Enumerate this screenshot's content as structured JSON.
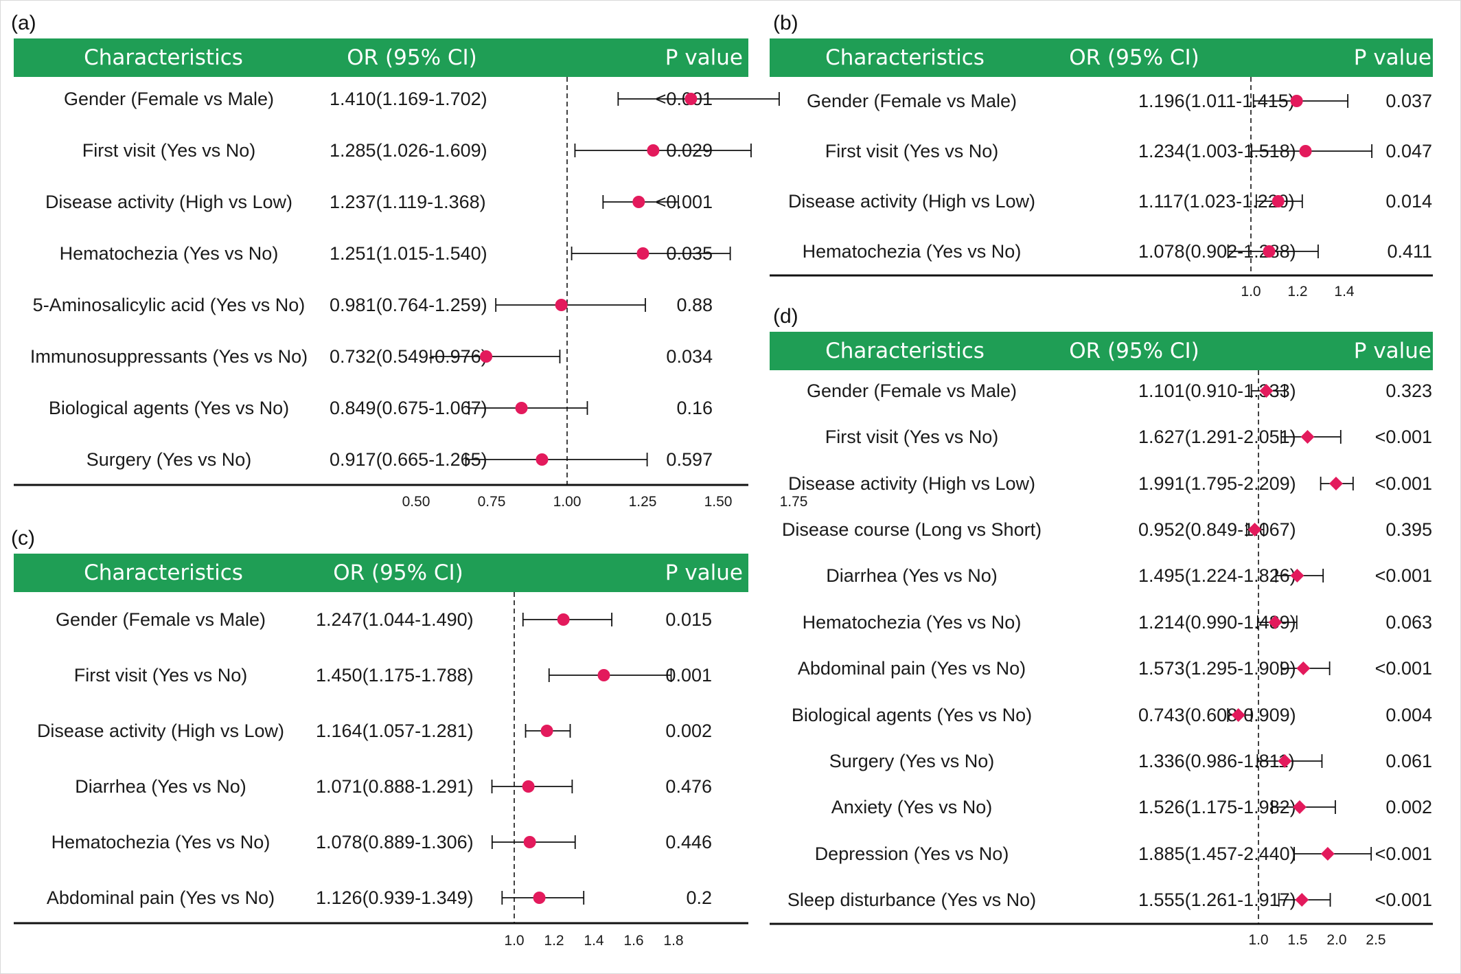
{
  "colors": {
    "header_bg": "#1f9e55",
    "marker": "#e31a5c",
    "line": "#111111"
  },
  "chart_data": [
    {
      "panel": "(a)",
      "type": "forest",
      "marker": "circle",
      "columns": [
        "Characteristics",
        "OR (95% CI)",
        "P value"
      ],
      "ref_line": 1.0,
      "xlim": [
        0.5,
        1.75
      ],
      "ticks": [
        "0.50",
        "0.75",
        "1.00",
        "1.25",
        "1.50",
        "1.75"
      ],
      "rows": [
        {
          "label": "Gender (Female vs Male)",
          "or": 1.41,
          "lo": 1.169,
          "hi": 1.702,
          "ci_text": "1.410(1.169-1.702)",
          "p": "<0.001"
        },
        {
          "label": "First visit (Yes vs No)",
          "or": 1.285,
          "lo": 1.026,
          "hi": 1.609,
          "ci_text": "1.285(1.026-1.609)",
          "p": "0.029"
        },
        {
          "label": "Disease activity (High vs Low)",
          "or": 1.237,
          "lo": 1.119,
          "hi": 1.368,
          "ci_text": "1.237(1.119-1.368)",
          "p": "<0.001"
        },
        {
          "label": "Hematochezia (Yes vs No)",
          "or": 1.251,
          "lo": 1.015,
          "hi": 1.54,
          "ci_text": "1.251(1.015-1.540)",
          "p": "0.035"
        },
        {
          "label": "5-Aminosalicylic acid (Yes vs No)",
          "or": 0.981,
          "lo": 0.764,
          "hi": 1.259,
          "ci_text": "0.981(0.764-1.259)",
          "p": "0.88"
        },
        {
          "label": "Immunosuppressants (Yes vs No)",
          "or": 0.732,
          "lo": 0.549,
          "hi": 0.976,
          "ci_text": "0.732(0.549-0.976)",
          "p": "0.034"
        },
        {
          "label": "Biological agents (Yes vs No)",
          "or": 0.849,
          "lo": 0.675,
          "hi": 1.067,
          "ci_text": "0.849(0.675-1.067)",
          "p": "0.16"
        },
        {
          "label": "Surgery (Yes vs No)",
          "or": 0.917,
          "lo": 0.665,
          "hi": 1.265,
          "ci_text": "0.917(0.665-1.265)",
          "p": "0.597"
        }
      ]
    },
    {
      "panel": "(b)",
      "type": "forest",
      "marker": "circle",
      "columns": [
        "Characteristics",
        "OR (95% CI)",
        "P value"
      ],
      "ref_line": 1.0,
      "xlim": [
        0.9,
        1.5
      ],
      "ticks": [
        "1.0",
        "1.2",
        "1.4"
      ],
      "rows": [
        {
          "label": "Gender (Female vs Male)",
          "or": 1.196,
          "lo": 1.011,
          "hi": 1.415,
          "ci_text": "1.196(1.011-1.415)",
          "p": "0.037"
        },
        {
          "label": "First visit (Yes vs No)",
          "or": 1.234,
          "lo": 1.003,
          "hi": 1.518,
          "ci_text": "1.234(1.003-1.518)",
          "p": "0.047"
        },
        {
          "label": "Disease activity (High vs Low)",
          "or": 1.117,
          "lo": 1.023,
          "hi": 1.22,
          "ci_text": "1.117(1.023-1.220)",
          "p": "0.014"
        },
        {
          "label": "Hematochezia (Yes vs No)",
          "or": 1.078,
          "lo": 0.902,
          "hi": 1.288,
          "ci_text": "1.078(0.902-1.288)",
          "p": "0.411"
        }
      ]
    },
    {
      "panel": "(c)",
      "type": "forest",
      "marker": "circle",
      "columns": [
        "Characteristics",
        "OR (95% CI)",
        "P value"
      ],
      "ref_line": 1.0,
      "xlim": [
        0.85,
        1.85
      ],
      "ticks": [
        "1.0",
        "1.2",
        "1.4",
        "1.6",
        "1.8"
      ],
      "rows": [
        {
          "label": "Gender (Female vs Male)",
          "or": 1.247,
          "lo": 1.044,
          "hi": 1.49,
          "ci_text": "1.247(1.044-1.490)",
          "p": "0.015"
        },
        {
          "label": "First visit (Yes vs No)",
          "or": 1.45,
          "lo": 1.175,
          "hi": 1.788,
          "ci_text": "1.450(1.175-1.788)",
          "p": "0.001"
        },
        {
          "label": "Disease activity (High vs Low)",
          "or": 1.164,
          "lo": 1.057,
          "hi": 1.281,
          "ci_text": "1.164(1.057-1.281)",
          "p": "0.002"
        },
        {
          "label": "Diarrhea (Yes vs No)",
          "or": 1.071,
          "lo": 0.888,
          "hi": 1.291,
          "ci_text": "1.071(0.888-1.291)",
          "p": "0.476"
        },
        {
          "label": "Hematochezia (Yes vs No)",
          "or": 1.078,
          "lo": 0.889,
          "hi": 1.306,
          "ci_text": "1.078(0.889-1.306)",
          "p": "0.446"
        },
        {
          "label": "Abdominal pain (Yes vs No)",
          "or": 1.126,
          "lo": 0.939,
          "hi": 1.349,
          "ci_text": "1.126(0.939-1.349)",
          "p": "0.2"
        }
      ]
    },
    {
      "panel": "(d)",
      "type": "forest",
      "marker": "diamond",
      "columns": [
        "Characteristics",
        "OR (95% CI)",
        "P value"
      ],
      "ref_line": 1.0,
      "xlim": [
        0.5,
        2.7
      ],
      "ticks": [
        "1.0",
        "1.5",
        "2.0",
        "2.5"
      ],
      "rows": [
        {
          "label": "Gender (Female vs Male)",
          "or": 1.101,
          "lo": 0.91,
          "hi": 1.333,
          "ci_text": "1.101(0.910-1.333)",
          "p": "0.323"
        },
        {
          "label": "First visit (Yes vs No)",
          "or": 1.627,
          "lo": 1.291,
          "hi": 2.051,
          "ci_text": "1.627(1.291-2.051)",
          "p": "<0.001"
        },
        {
          "label": "Disease activity (High vs Low)",
          "or": 1.991,
          "lo": 1.795,
          "hi": 2.209,
          "ci_text": "1.991(1.795-2.209)",
          "p": "<0.001"
        },
        {
          "label": "Disease course (Long vs Short)",
          "or": 0.952,
          "lo": 0.849,
          "hi": 1.067,
          "ci_text": "0.952(0.849-1.067)",
          "p": "0.395"
        },
        {
          "label": "Diarrhea (Yes vs No)",
          "or": 1.495,
          "lo": 1.224,
          "hi": 1.826,
          "ci_text": "1.495(1.224-1.826)",
          "p": "<0.001"
        },
        {
          "label": "Hematochezia (Yes vs No)",
          "or": 1.214,
          "lo": 0.99,
          "hi": 1.489,
          "ci_text": "1.214(0.990-1.489)",
          "p": "0.063"
        },
        {
          "label": "Abdominal pain (Yes vs No)",
          "or": 1.573,
          "lo": 1.295,
          "hi": 1.909,
          "ci_text": "1.573(1.295-1.909)",
          "p": "<0.001"
        },
        {
          "label": "Biological agents (Yes vs No)",
          "or": 0.743,
          "lo": 0.608,
          "hi": 0.909,
          "ci_text": "0.743(0.608-0.909)",
          "p": "0.004"
        },
        {
          "label": "Surgery (Yes vs No)",
          "or": 1.336,
          "lo": 0.986,
          "hi": 1.811,
          "ci_text": "1.336(0.986-1.811)",
          "p": "0.061"
        },
        {
          "label": "Anxiety (Yes vs No)",
          "or": 1.526,
          "lo": 1.175,
          "hi": 1.982,
          "ci_text": "1.526(1.175-1.982)",
          "p": "0.002"
        },
        {
          "label": "Depression (Yes vs No)",
          "or": 1.885,
          "lo": 1.457,
          "hi": 2.44,
          "ci_text": "1.885(1.457-2.440)",
          "p": "<0.001"
        },
        {
          "label": "Sleep disturbance (Yes vs No)",
          "or": 1.555,
          "lo": 1.261,
          "hi": 1.917,
          "ci_text": "1.555(1.261-1.917)",
          "p": "<0.001"
        }
      ]
    }
  ]
}
